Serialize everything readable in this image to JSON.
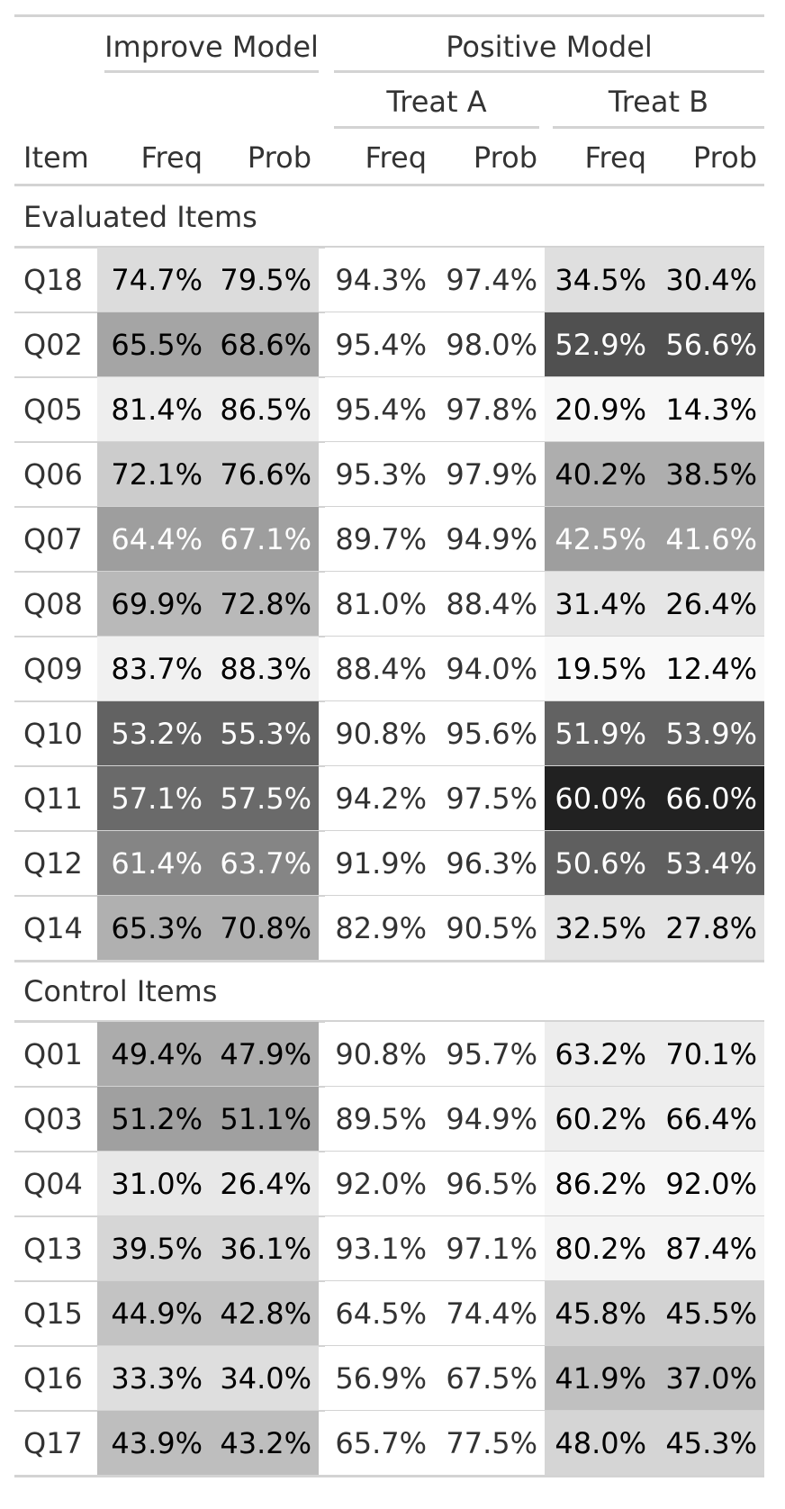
{
  "table": {
    "spanners": {
      "improve": "Improve Model",
      "positive": "Positive Model",
      "treat_a": "Treat A",
      "treat_b": "Treat B"
    },
    "columns": [
      "Item",
      "Freq",
      "Prob",
      "Freq",
      "Prob",
      "Freq",
      "Prob"
    ]
  },
  "chart_data": {
    "type": "table",
    "groups": [
      {
        "label": "Evaluated Items",
        "rows": [
          {
            "item": "Q18",
            "values": [
              "74.7%",
              "79.5%",
              "94.3%",
              "97.4%",
              "34.5%",
              "30.4%"
            ],
            "fills": [
              "#dcdcdc",
              "#dcdcdc",
              "#ffffff",
              "#ffffff",
              "#dfdfdf",
              "#dfdfdf"
            ],
            "text": [
              "#000000",
              "#000000",
              "#333333",
              "#333333",
              "#000000",
              "#000000"
            ]
          },
          {
            "item": "Q02",
            "values": [
              "65.5%",
              "68.6%",
              "95.4%",
              "98.0%",
              "52.9%",
              "56.6%"
            ],
            "fills": [
              "#a5a5a5",
              "#a5a5a5",
              "#ffffff",
              "#ffffff",
              "#505050",
              "#505050"
            ],
            "text": [
              "#000000",
              "#000000",
              "#333333",
              "#333333",
              "#ffffff",
              "#ffffff"
            ]
          },
          {
            "item": "Q05",
            "values": [
              "81.4%",
              "86.5%",
              "95.4%",
              "97.8%",
              "20.9%",
              "14.3%"
            ],
            "fills": [
              "#eeeeee",
              "#eeeeee",
              "#ffffff",
              "#ffffff",
              "#f7f7f7",
              "#f7f7f7"
            ],
            "text": [
              "#000000",
              "#000000",
              "#333333",
              "#333333",
              "#000000",
              "#000000"
            ]
          },
          {
            "item": "Q06",
            "values": [
              "72.1%",
              "76.6%",
              "95.3%",
              "97.9%",
              "40.2%",
              "38.5%"
            ],
            "fills": [
              "#cccccc",
              "#cccccc",
              "#ffffff",
              "#ffffff",
              "#aeaeae",
              "#aeaeae"
            ],
            "text": [
              "#000000",
              "#000000",
              "#333333",
              "#333333",
              "#000000",
              "#000000"
            ]
          },
          {
            "item": "Q07",
            "values": [
              "64.4%",
              "67.1%",
              "89.7%",
              "94.9%",
              "42.5%",
              "41.6%"
            ],
            "fills": [
              "#9e9e9e",
              "#9e9e9e",
              "#ffffff",
              "#ffffff",
              "#9e9e9e",
              "#9e9e9e"
            ],
            "text": [
              "#ffffff",
              "#ffffff",
              "#333333",
              "#333333",
              "#ffffff",
              "#ffffff"
            ]
          },
          {
            "item": "Q08",
            "values": [
              "69.9%",
              "72.8%",
              "81.0%",
              "88.4%",
              "31.4%",
              "26.4%"
            ],
            "fills": [
              "#b9b9b9",
              "#b9b9b9",
              "#ffffff",
              "#ffffff",
              "#e6e6e6",
              "#e6e6e6"
            ],
            "text": [
              "#000000",
              "#000000",
              "#333333",
              "#333333",
              "#000000",
              "#000000"
            ]
          },
          {
            "item": "Q09",
            "values": [
              "83.7%",
              "88.3%",
              "88.4%",
              "94.0%",
              "19.5%",
              "12.4%"
            ],
            "fills": [
              "#f1f1f1",
              "#f1f1f1",
              "#ffffff",
              "#ffffff",
              "#f9f9f9",
              "#f9f9f9"
            ],
            "text": [
              "#000000",
              "#000000",
              "#333333",
              "#333333",
              "#000000",
              "#000000"
            ]
          },
          {
            "item": "Q10",
            "values": [
              "53.2%",
              "55.3%",
              "90.8%",
              "95.6%",
              "51.9%",
              "53.9%"
            ],
            "fills": [
              "#626262",
              "#626262",
              "#ffffff",
              "#ffffff",
              "#626262",
              "#626262"
            ],
            "text": [
              "#ffffff",
              "#ffffff",
              "#333333",
              "#333333",
              "#ffffff",
              "#ffffff"
            ]
          },
          {
            "item": "Q11",
            "values": [
              "57.1%",
              "57.5%",
              "94.2%",
              "97.5%",
              "60.0%",
              "66.0%"
            ],
            "fills": [
              "#6a6a6a",
              "#6a6a6a",
              "#ffffff",
              "#ffffff",
              "#212121",
              "#212121"
            ],
            "text": [
              "#ffffff",
              "#ffffff",
              "#333333",
              "#333333",
              "#ffffff",
              "#ffffff"
            ]
          },
          {
            "item": "Q12",
            "values": [
              "61.4%",
              "63.7%",
              "91.9%",
              "96.3%",
              "50.6%",
              "53.4%"
            ],
            "fills": [
              "#858585",
              "#858585",
              "#ffffff",
              "#ffffff",
              "#5f5f5f",
              "#5f5f5f"
            ],
            "text": [
              "#ffffff",
              "#ffffff",
              "#333333",
              "#333333",
              "#ffffff",
              "#ffffff"
            ]
          },
          {
            "item": "Q14",
            "values": [
              "65.3%",
              "70.8%",
              "82.9%",
              "90.5%",
              "32.5%",
              "27.8%"
            ],
            "fills": [
              "#b0b0b0",
              "#b0b0b0",
              "#ffffff",
              "#ffffff",
              "#e4e4e4",
              "#e4e4e4"
            ],
            "text": [
              "#000000",
              "#000000",
              "#333333",
              "#333333",
              "#000000",
              "#000000"
            ]
          }
        ]
      },
      {
        "label": "Control Items",
        "rows": [
          {
            "item": "Q01",
            "values": [
              "49.4%",
              "47.9%",
              "90.8%",
              "95.7%",
              "63.2%",
              "70.1%"
            ],
            "fills": [
              "#acacac",
              "#acacac",
              "#ffffff",
              "#ffffff",
              "#ededed",
              "#ededed"
            ],
            "text": [
              "#000000",
              "#000000",
              "#333333",
              "#333333",
              "#000000",
              "#000000"
            ]
          },
          {
            "item": "Q03",
            "values": [
              "51.2%",
              "51.1%",
              "89.5%",
              "94.9%",
              "60.2%",
              "66.4%"
            ],
            "fills": [
              "#a0a0a0",
              "#a0a0a0",
              "#ffffff",
              "#ffffff",
              "#eeeeee",
              "#eeeeee"
            ],
            "text": [
              "#000000",
              "#000000",
              "#333333",
              "#333333",
              "#000000",
              "#000000"
            ]
          },
          {
            "item": "Q04",
            "values": [
              "31.0%",
              "26.4%",
              "92.0%",
              "96.5%",
              "86.2%",
              "92.0%"
            ],
            "fills": [
              "#e8e8e8",
              "#e8e8e8",
              "#ffffff",
              "#ffffff",
              "#f7f7f7",
              "#f7f7f7"
            ],
            "text": [
              "#000000",
              "#000000",
              "#333333",
              "#333333",
              "#000000",
              "#000000"
            ]
          },
          {
            "item": "Q13",
            "values": [
              "39.5%",
              "36.1%",
              "93.1%",
              "97.1%",
              "80.2%",
              "87.4%"
            ],
            "fills": [
              "#d6d6d6",
              "#d6d6d6",
              "#ffffff",
              "#ffffff",
              "#f5f5f5",
              "#f5f5f5"
            ],
            "text": [
              "#000000",
              "#000000",
              "#333333",
              "#333333",
              "#000000",
              "#000000"
            ]
          },
          {
            "item": "Q15",
            "values": [
              "44.9%",
              "42.8%",
              "64.5%",
              "74.4%",
              "45.8%",
              "45.5%"
            ],
            "fills": [
              "#c3c3c3",
              "#c3c3c3",
              "#ffffff",
              "#ffffff",
              "#d2d2d2",
              "#d2d2d2"
            ],
            "text": [
              "#000000",
              "#000000",
              "#333333",
              "#333333",
              "#000000",
              "#000000"
            ]
          },
          {
            "item": "Q16",
            "values": [
              "33.3%",
              "34.0%",
              "56.9%",
              "67.5%",
              "41.9%",
              "37.0%"
            ],
            "fills": [
              "#dedede",
              "#dedede",
              "#ffffff",
              "#ffffff",
              "#c0c0c0",
              "#c0c0c0"
            ],
            "text": [
              "#000000",
              "#000000",
              "#333333",
              "#333333",
              "#000000",
              "#000000"
            ]
          },
          {
            "item": "Q17",
            "values": [
              "43.9%",
              "43.2%",
              "65.7%",
              "77.5%",
              "48.0%",
              "45.3%"
            ],
            "fills": [
              "#bebebe",
              "#bebebe",
              "#ffffff",
              "#ffffff",
              "#d5d5d5",
              "#d5d5d5"
            ],
            "text": [
              "#000000",
              "#000000",
              "#333333",
              "#333333",
              "#000000",
              "#000000"
            ]
          }
        ]
      }
    ]
  }
}
